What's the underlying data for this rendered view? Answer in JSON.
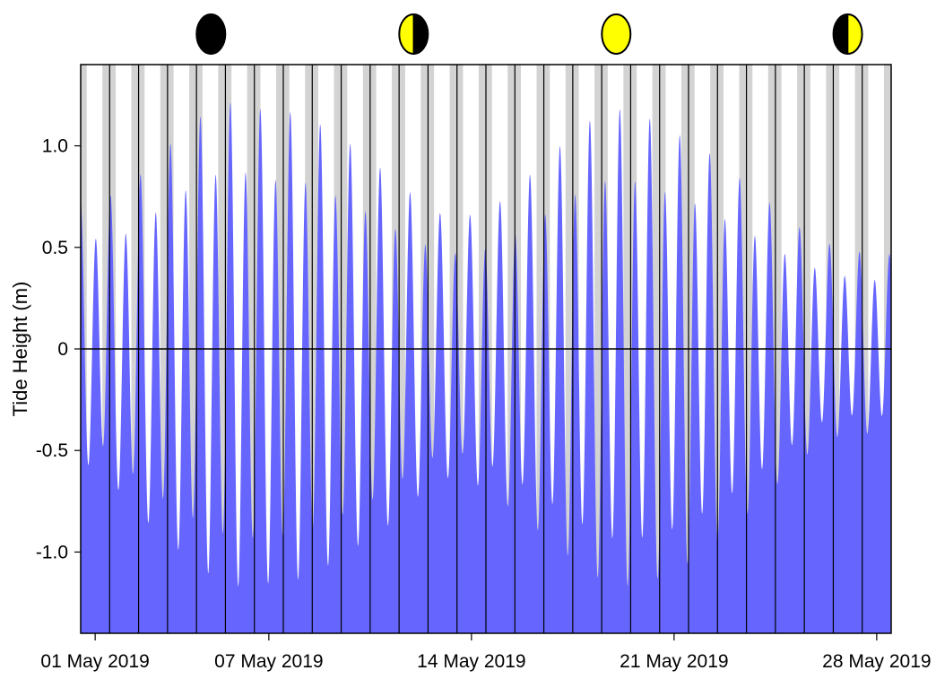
{
  "chart_data": {
    "type": "area",
    "title": "",
    "xlabel": "",
    "ylabel": "Tide Height (m)",
    "xlim": [
      "2019-05-01T00:00",
      "2019-05-29T00:00"
    ],
    "ylim": [
      -1.4,
      1.4
    ],
    "grid": false,
    "legend": "none",
    "y_ticks": [
      {
        "value": 1.0,
        "label": "1.0"
      },
      {
        "value": 0.5,
        "label": "0.5"
      },
      {
        "value": 0,
        "label": "0"
      },
      {
        "value": -0.5,
        "label": "-0.5"
      },
      {
        "value": -1.0,
        "label": "-1.0"
      }
    ],
    "x_ticks": [
      {
        "date": "2019-05-01",
        "label": "01 May 2019"
      },
      {
        "date": "2019-05-07",
        "label": "07 May 2019"
      },
      {
        "date": "2019-05-14",
        "label": "14 May 2019"
      },
      {
        "date": "2019-05-21",
        "label": "21 May 2019"
      },
      {
        "date": "2019-05-28",
        "label": "28 May 2019"
      }
    ],
    "moon_phases": [
      {
        "date": "2019-05-05",
        "phase": "new moon"
      },
      {
        "date": "2019-05-12",
        "phase": "first quarter"
      },
      {
        "date": "2019-05-19",
        "phase": "full moon"
      },
      {
        "date": "2019-05-27",
        "phase": "last quarter"
      }
    ],
    "tidal_range": [
      {
        "date": "2019-05-01",
        "high": 0.75,
        "low": -0.62
      },
      {
        "date": "2019-05-02",
        "high": 0.8,
        "low": -0.78
      },
      {
        "date": "2019-05-03",
        "high": 0.95,
        "low": -0.95
      },
      {
        "date": "2019-05-04",
        "high": 1.1,
        "low": -1.08
      },
      {
        "date": "2019-05-05",
        "high": 1.22,
        "low": -1.2
      },
      {
        "date": "2019-05-06",
        "high": 1.26,
        "low": -1.26
      },
      {
        "date": "2019-05-07",
        "high": 1.2,
        "low": -1.24
      },
      {
        "date": "2019-05-08",
        "high": 1.2,
        "low": -1.22
      },
      {
        "date": "2019-05-09",
        "high": 1.12,
        "low": -1.15
      },
      {
        "date": "2019-05-10",
        "high": 1.02,
        "low": -1.05
      },
      {
        "date": "2019-05-11",
        "high": 0.9,
        "low": -0.95
      },
      {
        "date": "2019-05-12",
        "high": 0.78,
        "low": -0.8
      },
      {
        "date": "2019-05-13",
        "high": 0.68,
        "low": -0.68
      },
      {
        "date": "2019-05-14",
        "high": 0.68,
        "low": -0.7
      },
      {
        "date": "2019-05-15",
        "high": 0.75,
        "low": -0.8
      },
      {
        "date": "2019-05-16",
        "high": 0.88,
        "low": -0.92
      },
      {
        "date": "2019-05-17",
        "high": 1.02,
        "low": -1.05
      },
      {
        "date": "2019-05-18",
        "high": 1.15,
        "low": -1.18
      },
      {
        "date": "2019-05-19",
        "high": 1.22,
        "low": -1.26
      },
      {
        "date": "2019-05-20",
        "high": 1.18,
        "low": -1.24
      },
      {
        "date": "2019-05-21",
        "high": 1.1,
        "low": -1.18
      },
      {
        "date": "2019-05-22",
        "high": 1.02,
        "low": -1.08
      },
      {
        "date": "2019-05-23",
        "high": 0.9,
        "low": -0.95
      },
      {
        "date": "2019-05-24",
        "high": 0.78,
        "low": -0.8
      },
      {
        "date": "2019-05-25",
        "high": 0.65,
        "low": -0.65
      },
      {
        "date": "2019-05-26",
        "high": 0.55,
        "low": -0.5
      },
      {
        "date": "2019-05-27",
        "high": 0.5,
        "low": -0.45
      },
      {
        "date": "2019-05-28",
        "high": 0.48,
        "low": -0.45
      }
    ],
    "colors": {
      "water": "#6666ff",
      "night": "#d3d3d3",
      "day": "#ffffff",
      "new_moon": "#000000",
      "moon_lit": "#ffff00"
    }
  }
}
